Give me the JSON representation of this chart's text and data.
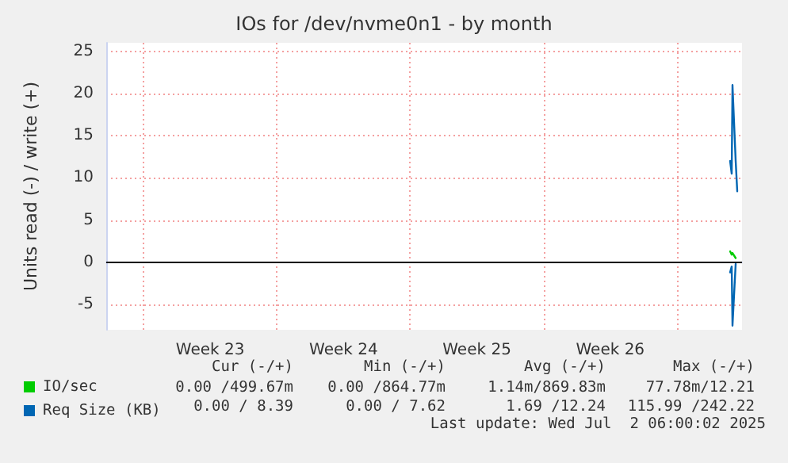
{
  "chart_data": {
    "type": "line",
    "title": "IOs for /dev/nvme0n1 - by month",
    "ylabel": "Units read (-) / write (+)",
    "xlim": [
      "2025-05-31T01:00",
      "2025-07-03T10:00"
    ],
    "xticks": [
      {
        "value": "2025-06-02",
        "label": null
      },
      {
        "value": "2025-06-09",
        "label": null
      },
      {
        "value": "2025-06-16",
        "label": null
      },
      {
        "value": "2025-06-23",
        "label": null
      },
      {
        "value": "2025-06-30",
        "label": null
      },
      {
        "value": "2025-06-05T12:00",
        "label": "Week 23"
      },
      {
        "value": "2025-06-12T12:00",
        "label": "Week 24"
      },
      {
        "value": "2025-06-19T12:00",
        "label": "Week 25"
      },
      {
        "value": "2025-06-26T12:00",
        "label": "Week 26"
      }
    ],
    "ylim": [
      -8,
      26
    ],
    "yticks": [
      -5,
      0,
      5,
      10,
      15,
      20,
      25
    ],
    "grid": true,
    "legend": "bottom left",
    "marker": "none",
    "line_style": "solid",
    "ref_lines": [
      {
        "axis": "y",
        "value": 0,
        "color": "#000000"
      }
    ],
    "series": [
      {
        "name": "IO/sec",
        "color": "#00cc00",
        "x": [
          "2025-07-02T19:00",
          "2025-07-02T21:00",
          "2025-07-02T22:00",
          "2025-07-03T02:00"
        ],
        "values": [
          1.3,
          0.9,
          1.1,
          0.5
        ]
      },
      {
        "name": "Req Size (KB)",
        "color": "#0066b3",
        "x": [
          "2025-07-02T19:00",
          "2025-07-02T21:00",
          "2025-07-02T22:00",
          "2025-07-03T02:00",
          "2025-07-03T04:00"
        ],
        "values": [
          12,
          10.5,
          21,
          12,
          8.4
        ]
      },
      {
        "color": "#0066b3",
        "x": [
          "2025-07-02T19:00",
          "2025-07-02T21:00",
          "2025-07-02T22:00",
          "2025-07-03T02:00"
        ],
        "values": [
          -1.2,
          -0.5,
          -7.5,
          -0.2
        ]
      }
    ],
    "annotations": [
      "Cur (-/+)",
      "Min (-/+)",
      "Avg (-/+)",
      "Max (-/+)",
      "0.00 /499.67m",
      "0.00 /864.77m",
      "1.14m/869.83m",
      "77.78m/12.21",
      "0.00 / 8.39",
      "0.00 / 7.62",
      "1.69 /12.24",
      "115.99 /242.22",
      "Last update: Wed Jul  2 06:00:02 2025"
    ]
  }
}
